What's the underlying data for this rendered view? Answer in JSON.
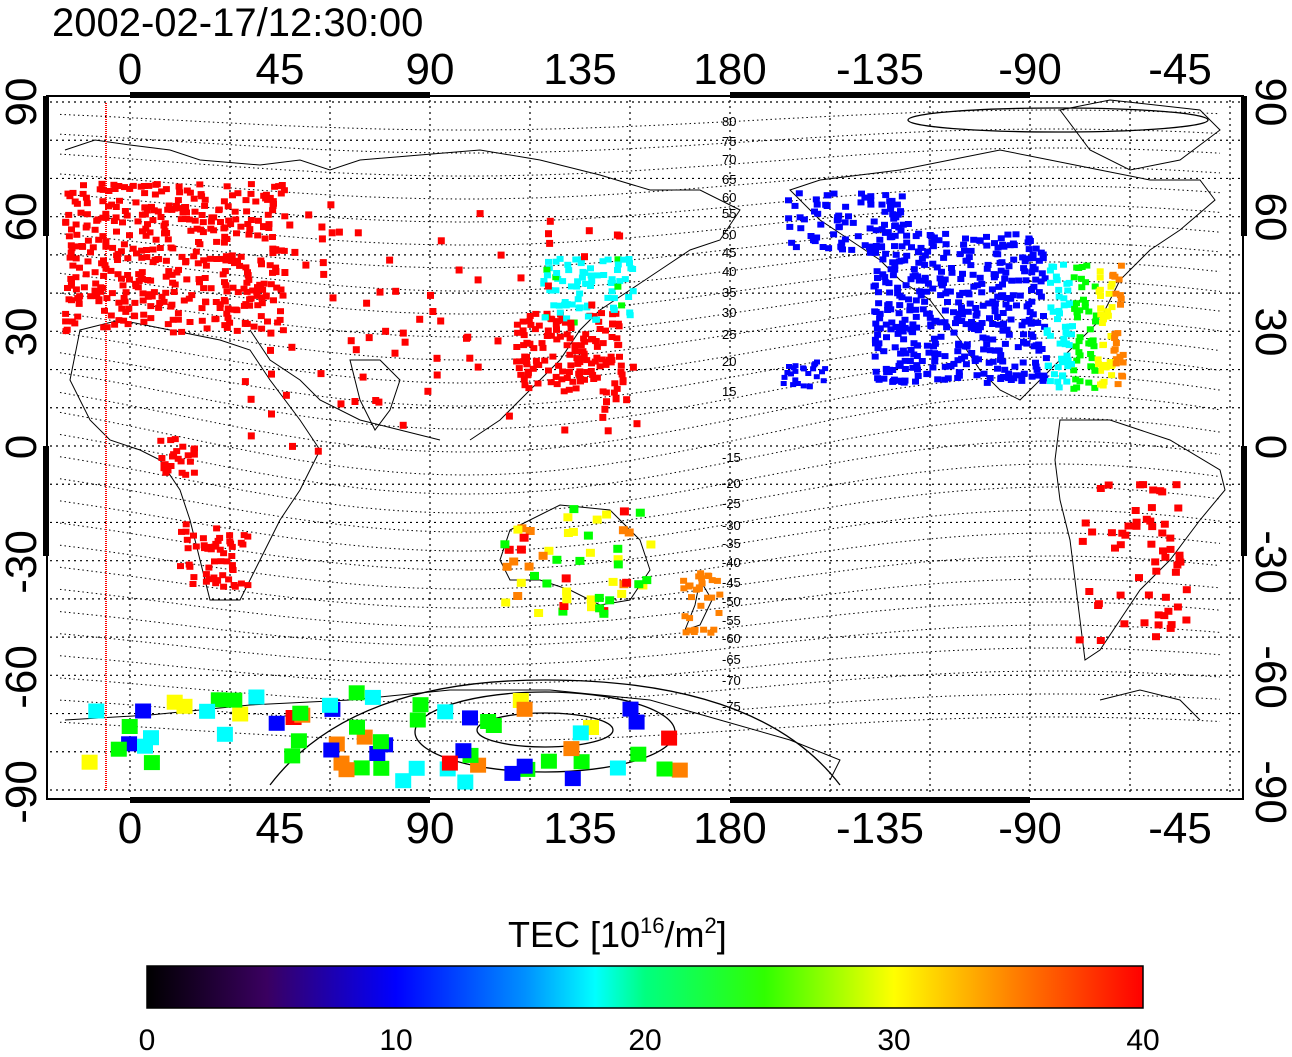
{
  "title": "2002-02-17/12:30:00",
  "axes": {
    "top_lon_labels": [
      "0",
      "45",
      "90",
      "135",
      "180",
      "-135",
      "-90",
      "-45"
    ],
    "bottom_lon_labels": [
      "0",
      "45",
      "90",
      "135",
      "180",
      "-135",
      "-90",
      "-45"
    ],
    "left_lat_labels": [
      "90",
      "60",
      "30",
      "0",
      "-30",
      "-60",
      "-90"
    ],
    "right_lat_labels": [
      "90",
      "60",
      "30",
      "0",
      "-30",
      "-60",
      "-90"
    ]
  },
  "contour_labels": [
    "80",
    "75",
    "70",
    "65",
    "60",
    "55",
    "50",
    "45",
    "40",
    "35",
    "30",
    "25",
    "20",
    "15",
    "-15",
    "-20",
    "-25",
    "-30",
    "-35",
    "-40",
    "-45",
    "-50",
    "-55",
    "-60",
    "-65",
    "-70",
    "-75"
  ],
  "colorbar": {
    "title_prefix": "TEC  [10",
    "title_sup1": "16",
    "title_mid": "/m",
    "title_sup2": "2",
    "title_suffix": "]",
    "tick_labels": [
      "0",
      "10",
      "20",
      "30",
      "40"
    ],
    "min": 0,
    "max": 40
  },
  "colors": {
    "red": "#ff0000",
    "orange": "#ff8000",
    "yellow": "#ffff00",
    "green": "#00ff00",
    "cyan": "#00ffff",
    "blue": "#0000ff",
    "purple": "#4b0082"
  },
  "tec_regions": [
    {
      "name": "europe",
      "value": 40
    },
    {
      "name": "east-asia",
      "value": 40
    },
    {
      "name": "japan",
      "value": 18
    },
    {
      "name": "north-america-west",
      "value": 9
    },
    {
      "name": "north-america-east",
      "value": 24
    },
    {
      "name": "alaska",
      "value": 11
    },
    {
      "name": "hawaii",
      "value": 10
    },
    {
      "name": "africa-central",
      "value": 40
    },
    {
      "name": "africa-south",
      "value": 40
    },
    {
      "name": "south-america",
      "value": 40
    },
    {
      "name": "australia",
      "value": 33
    },
    {
      "name": "new-zealand",
      "value": 35
    },
    {
      "name": "antarctica",
      "value": 22
    }
  ]
}
